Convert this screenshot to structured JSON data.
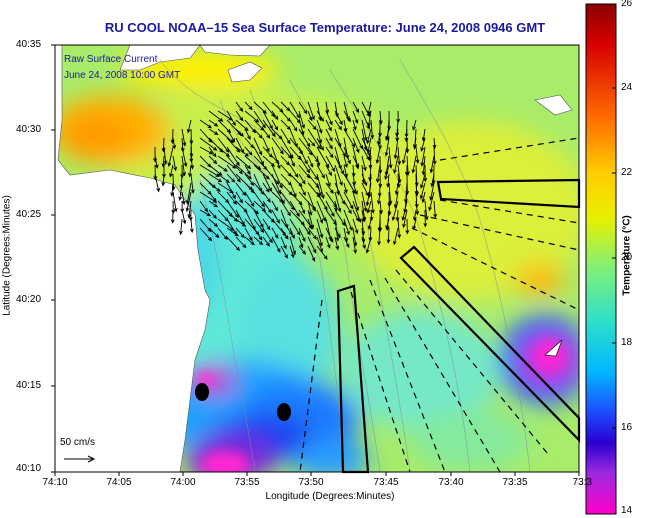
{
  "title": "RU COOL  NOAA–15  Sea Surface Temperature:  June 24, 2008 0946 GMT",
  "current_legend": {
    "line1": "Raw Surface Current",
    "line2": "June 24, 2008 10:00 GMT"
  },
  "axes": {
    "xlabel": "Longitude (Degrees:Minutes)",
    "ylabel": "Latitude (Degrees:Minutes)",
    "xticks": [
      "74:10",
      "74:05",
      "74:00",
      "73:55",
      "73:50",
      "73:45",
      "73:40",
      "73:35",
      "73:3"
    ],
    "yticks": [
      "40:35",
      "40:30",
      "40:25",
      "40:20",
      "40:15",
      "40:10"
    ]
  },
  "colorbar": {
    "label": "Temperature (°C)",
    "ticks": [
      "26",
      "24",
      "22",
      "20",
      "18",
      "16",
      "14"
    ],
    "min": 14,
    "max": 26
  },
  "scale_label": "50 cm/s",
  "colors": {
    "title": "#1a1aa0",
    "land": "#ffffff",
    "vector": "#000000"
  }
}
